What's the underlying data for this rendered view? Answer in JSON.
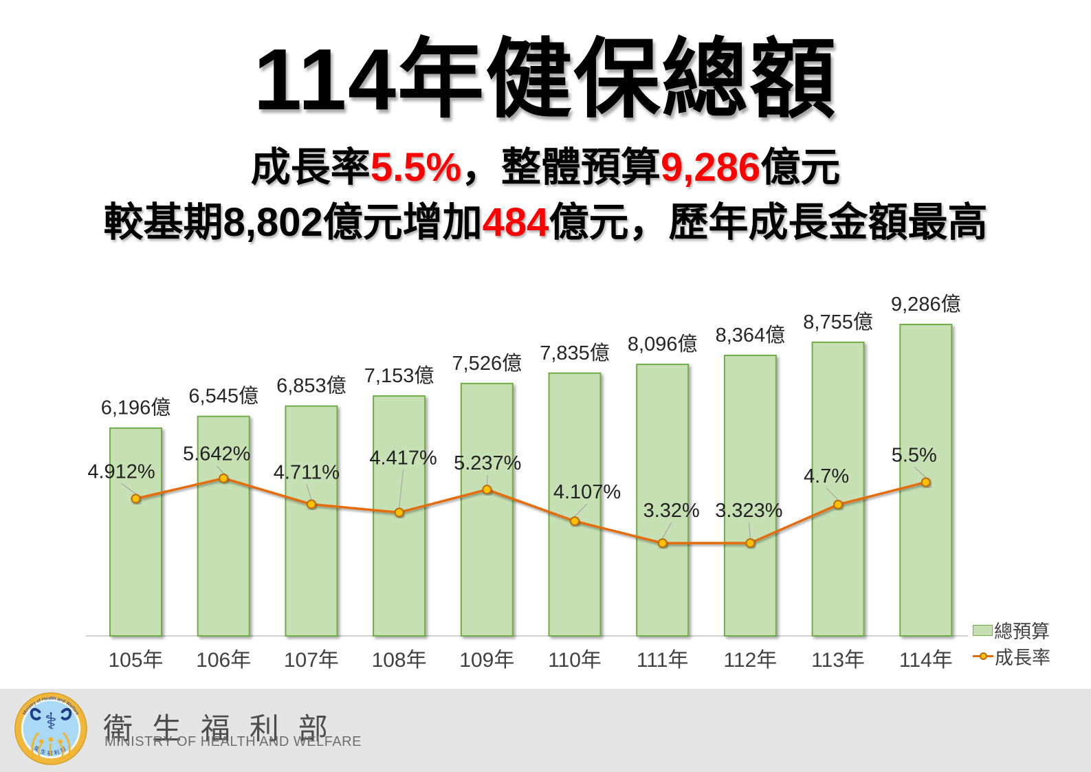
{
  "title": "114年健保總額",
  "subtitle": {
    "line1": [
      {
        "text": "成長率",
        "red": false
      },
      {
        "text": "5.5%",
        "red": true
      },
      {
        "text": "，整體預算",
        "red": false
      },
      {
        "text": "9,286",
        "red": true
      },
      {
        "text": "億元",
        "red": false
      }
    ],
    "line2": [
      {
        "text": "較基期8,802億元增加",
        "red": false
      },
      {
        "text": "484",
        "red": true
      },
      {
        "text": "億元，歷年成長金額最高",
        "red": false
      }
    ]
  },
  "chart_data": {
    "type": "bar+line",
    "categories": [
      "105年",
      "106年",
      "107年",
      "108年",
      "109年",
      "110年",
      "111年",
      "112年",
      "113年",
      "114年"
    ],
    "series": [
      {
        "name": "總預算",
        "type": "bar",
        "unit": "億",
        "values": [
          6196,
          6545,
          6853,
          7153,
          7526,
          7835,
          8096,
          8364,
          8755,
          9286
        ],
        "labels": [
          "6,196億",
          "6,545億",
          "6,853億",
          "7,153億",
          "7,526億",
          "7,835億",
          "8,096億",
          "8,364億",
          "8,755億",
          "9,286億"
        ]
      },
      {
        "name": "成長率",
        "type": "line",
        "unit": "%",
        "values": [
          4.912,
          5.642,
          4.711,
          4.417,
          5.237,
          4.107,
          3.32,
          3.323,
          4.7,
          5.5
        ],
        "labels": [
          "4.912%",
          "5.642%",
          "4.711%",
          "4.417%",
          "5.237%",
          "4.107%",
          "3.32%",
          "3.323%",
          "4.7%",
          "5.5%"
        ]
      }
    ],
    "y_axis_labels_visible": false,
    "grid": false,
    "legend_position": "bottom-right",
    "colors": {
      "bar_fill": "#c6e0b4",
      "bar_border": "#70ad47",
      "line": "#e36c0a",
      "marker_fill": "#ffc000",
      "marker_border": "#b96c10",
      "leader_line": "#a6a6a6",
      "axis_line": "#c3c3c3",
      "accent_red": "#ff0000"
    }
  },
  "legend": {
    "items": [
      {
        "label": "總預算",
        "swatch": "bar"
      },
      {
        "label": "成長率",
        "swatch": "line-marker"
      }
    ]
  },
  "footer": {
    "org_zh": "衛 生 福 利 部",
    "org_en": "MINISTRY OF HEALTH AND WELFARE",
    "logo": {
      "ring_text_top": "Ministry of Health and Welfare",
      "ring_text_bottom": "衛生福利部",
      "symbol": "caduceus"
    }
  }
}
